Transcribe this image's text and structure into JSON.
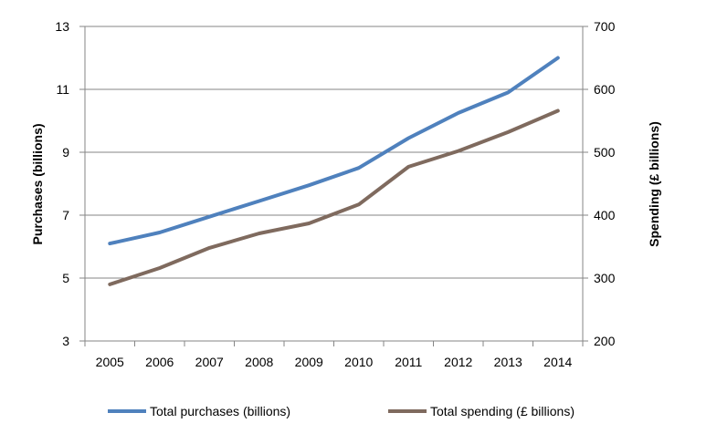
{
  "chart_data": {
    "type": "line",
    "title": "",
    "x": [
      "2005",
      "2006",
      "2007",
      "2008",
      "2009",
      "2010",
      "2011",
      "2012",
      "2013",
      "2014"
    ],
    "xlabel": "",
    "ylabel": "Purchases (billions)",
    "y2label": "Spending (£ billions)",
    "ylim": [
      3,
      13
    ],
    "yticks": [
      3,
      5,
      7,
      9,
      11,
      13
    ],
    "y2lim": [
      200,
      700
    ],
    "y2ticks": [
      200,
      300,
      400,
      500,
      600,
      700
    ],
    "grid": "horizontal",
    "legend_position": "bottom",
    "series": [
      {
        "name": "Total purchases (billions)",
        "axis": "left",
        "color": "#4f81bd",
        "values": [
          6.1,
          6.45,
          6.95,
          7.45,
          7.95,
          8.5,
          9.45,
          10.25,
          10.9,
          12.0
        ]
      },
      {
        "name": "Total spending (£ billions)",
        "axis": "right",
        "color": "#7f6a5e",
        "values": [
          290,
          316,
          348,
          371,
          387,
          417,
          477,
          502,
          532,
          566
        ]
      }
    ]
  }
}
